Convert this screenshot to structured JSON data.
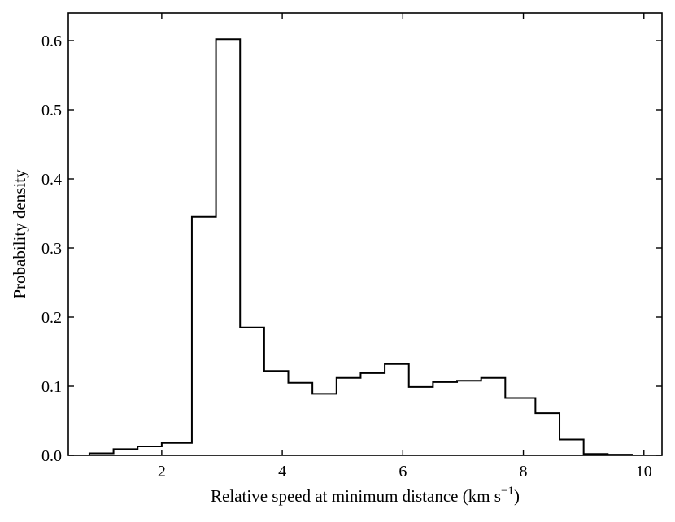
{
  "chart_data": {
    "type": "histogram",
    "title": "",
    "xlabel": "Relative speed at minimum distance (km s",
    "xlabel_superscript": "−1",
    "xlabel_suffix": ")",
    "ylabel": "Probability density",
    "xlim": [
      0.45,
      10.3
    ],
    "ylim": [
      0.0,
      0.64
    ],
    "xticks": [
      2,
      4,
      6,
      8,
      10
    ],
    "yticks": [
      0.0,
      0.1,
      0.2,
      0.3,
      0.4,
      0.5,
      0.6
    ],
    "ytick_labels": [
      "0.0",
      "0.1",
      "0.2",
      "0.3",
      "0.4",
      "0.5",
      "0.6"
    ],
    "grid": false,
    "bin_edges": [
      0.8,
      1.2,
      1.6,
      2.0,
      2.5,
      2.9,
      3.3,
      3.7,
      4.1,
      4.5,
      4.9,
      5.3,
      5.7,
      6.1,
      6.5,
      6.9,
      7.3,
      7.7,
      8.2,
      8.6,
      9.0,
      9.4,
      9.8
    ],
    "values": [
      0.003,
      0.009,
      0.013,
      0.018,
      0.345,
      0.602,
      0.185,
      0.122,
      0.105,
      0.089,
      0.112,
      0.119,
      0.132,
      0.099,
      0.106,
      0.108,
      0.112,
      0.083,
      0.061,
      0.023,
      0.002,
      0.001
    ]
  }
}
